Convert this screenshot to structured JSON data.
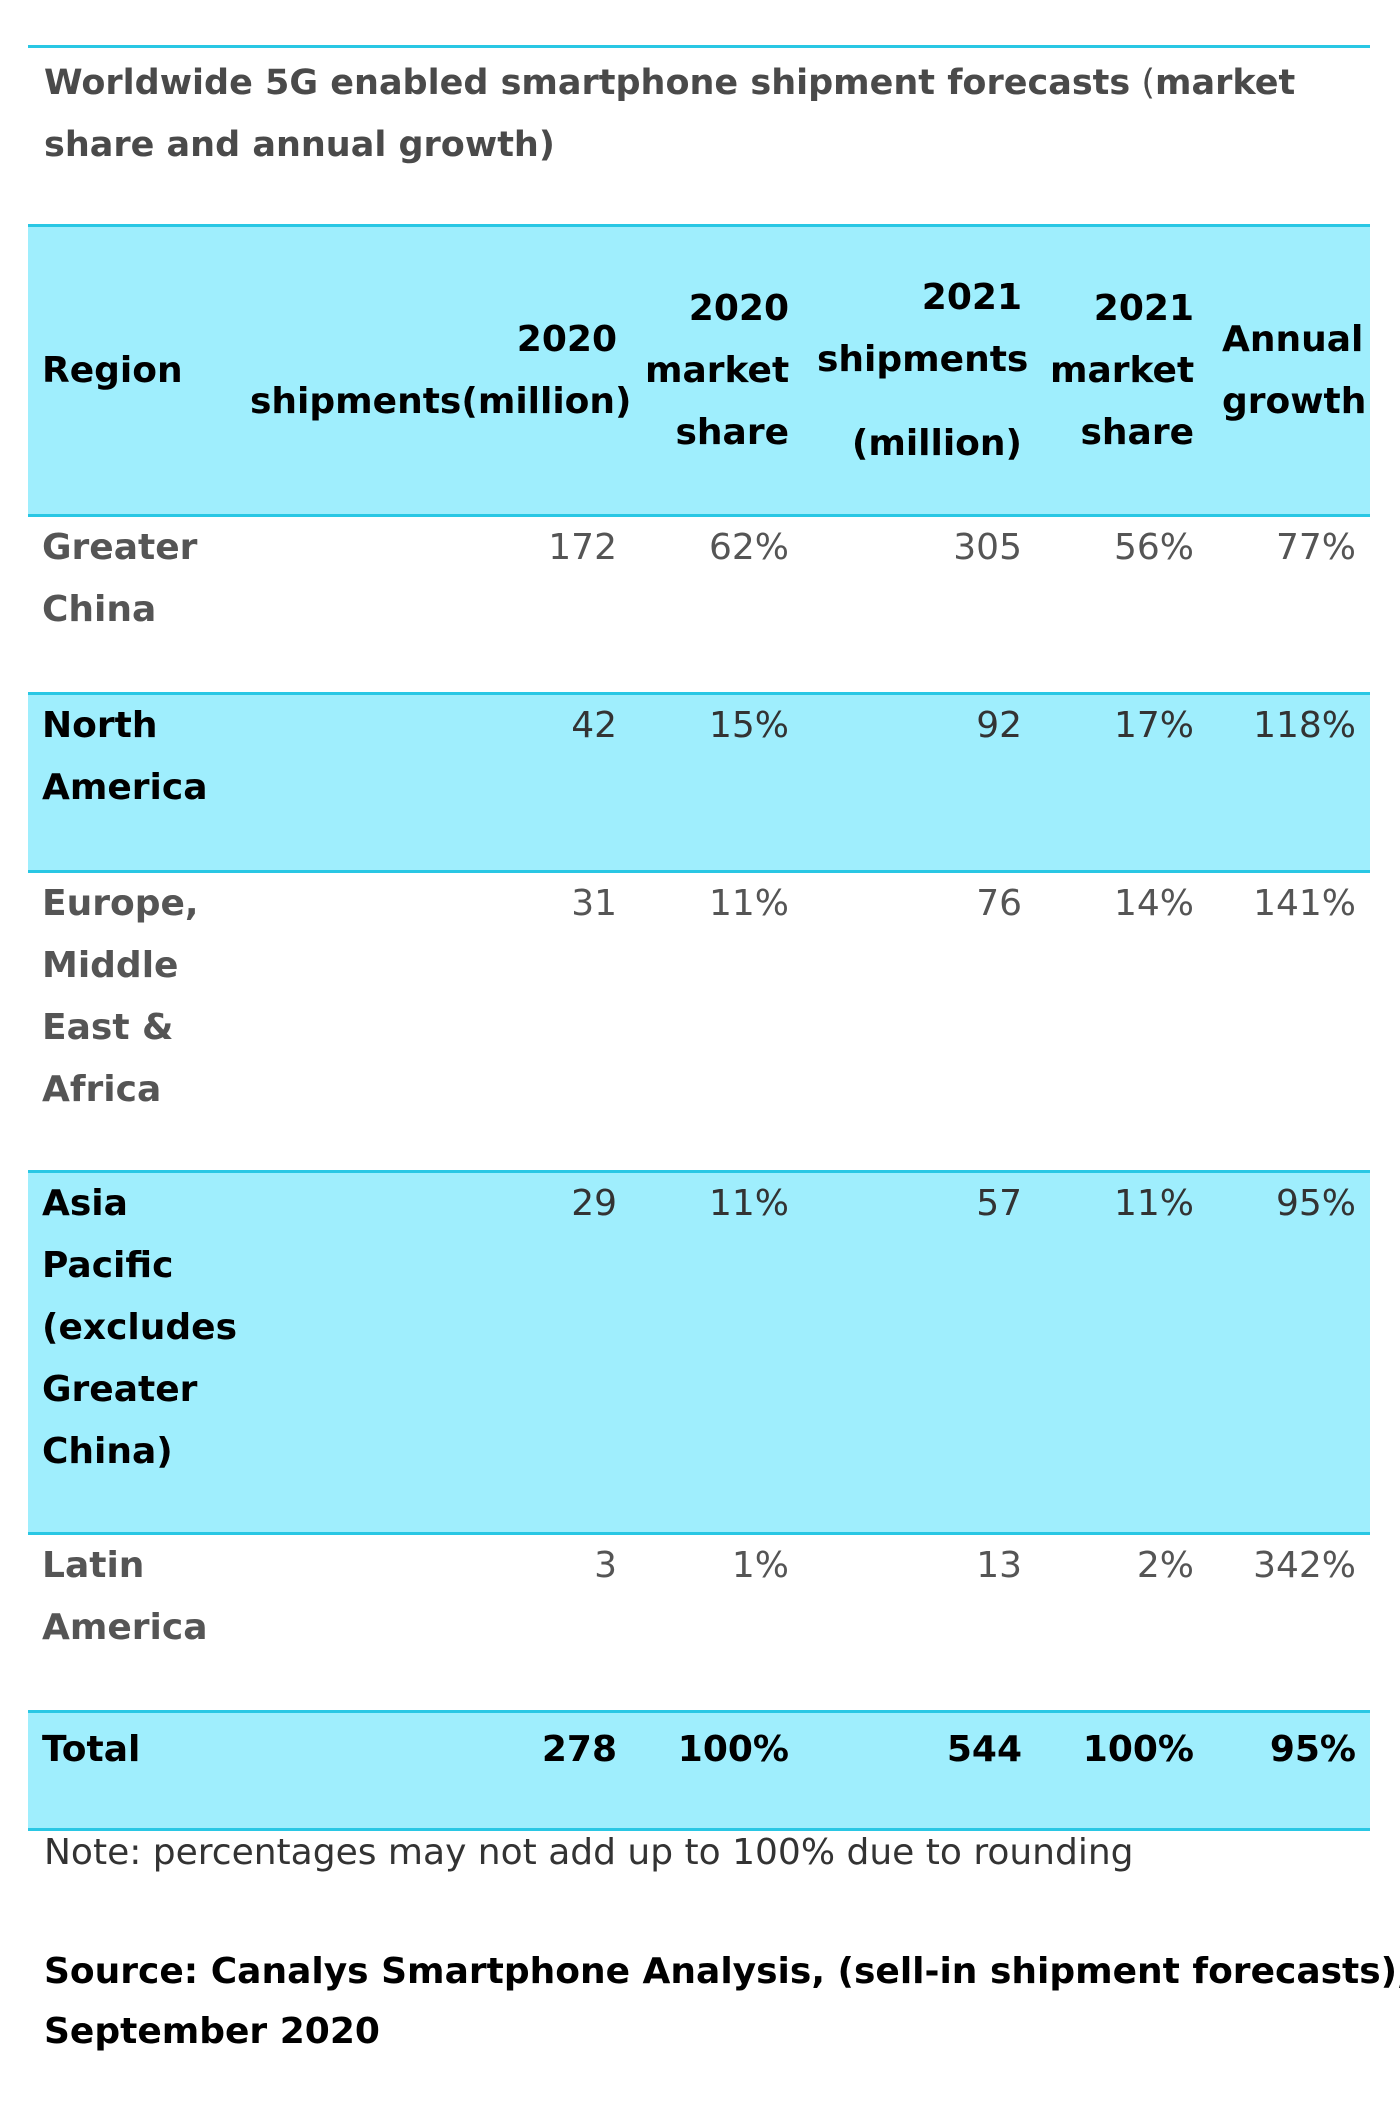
{
  "caption": {
    "bold": "Worldwide 5G enabled smartphone shipment forecasts",
    "paren_open": " (",
    "rest": "market share and annual growth)"
  },
  "table": {
    "headers": {
      "region": "Region",
      "s2020_a": "2020",
      "s2020_b": "shipments(million)",
      "m2020_a": "2020",
      "m2020_b": "market",
      "m2020_c": "share",
      "s2021_a": "2021",
      "s2021_b": "shipments",
      "s2021_c": "(million)",
      "m2021_a": "2021",
      "m2021_b": "market",
      "m2021_c": "share",
      "growth_a": "Annual",
      "growth_b": "growth"
    },
    "rows": [
      {
        "region_lines": [
          "Greater",
          "China"
        ],
        "s2020": "172",
        "m2020": "62%",
        "s2021": "305",
        "m2021": "56%",
        "growth": "77%"
      },
      {
        "region_lines": [
          "North",
          "America"
        ],
        "s2020": "42",
        "m2020": "15%",
        "s2021": "92",
        "m2021": "17%",
        "growth": "118%"
      },
      {
        "region_lines": [
          "Europe,",
          "Middle",
          "East &",
          "Africa"
        ],
        "s2020": "31",
        "m2020": "11%",
        "s2021": "76",
        "m2021": "14%",
        "growth": "141%"
      },
      {
        "region_lines": [
          "Asia",
          "Pacific",
          "(excludes",
          "Greater",
          "China)"
        ],
        "s2020": "29",
        "m2020": "11%",
        "s2021": "57",
        "m2021": "11%",
        "growth": "95%"
      },
      {
        "region_lines": [
          "Latin",
          "America"
        ],
        "s2020": "3",
        "m2020": "1%",
        "s2021": "13",
        "m2021": "2%",
        "growth": "342%"
      }
    ],
    "total": {
      "region": "Total",
      "s2020": "278",
      "m2020": "100%",
      "s2021": "544",
      "m2021": "100%",
      "growth": "95%"
    }
  },
  "note": "Note: percentages may not add up to 100% due to rounding",
  "source_lines": [
    "Source: Canalys Smartphone Analysis, (sell-in shipment forecasts),",
    "September 2020"
  ],
  "colors": {
    "accent_line": "#29c7e4",
    "row_highlight": "#9feefd"
  }
}
